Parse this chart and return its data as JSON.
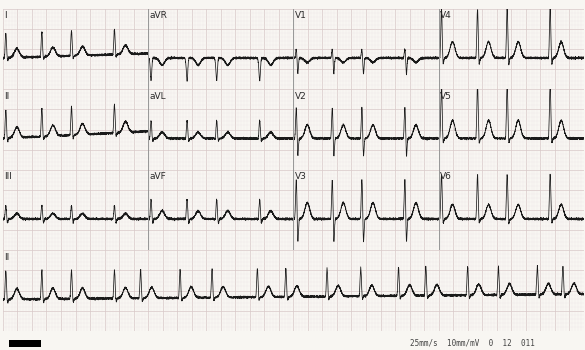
{
  "paper_color": "#f8f6f2",
  "grid_major_color": "#d8c8c8",
  "grid_minor_color": "#ece4e4",
  "ecg_color": "#1a1a1a",
  "separator_color": "#999999",
  "labels": {
    "row1": [
      "I",
      "aVR",
      "V1",
      "V4"
    ],
    "row2": [
      "II",
      "aVL",
      "V2",
      "V5"
    ],
    "row3": [
      "III",
      "aVF",
      "V3",
      "V6"
    ],
    "row4": "II"
  },
  "footer_text": "25mm/s  10mm/mV  0  12  011",
  "label_fontsize": 6.5,
  "footer_fontsize": 5.5,
  "seg_dur": 2.5,
  "full_dur": 10.0,
  "sample_rate": 500
}
